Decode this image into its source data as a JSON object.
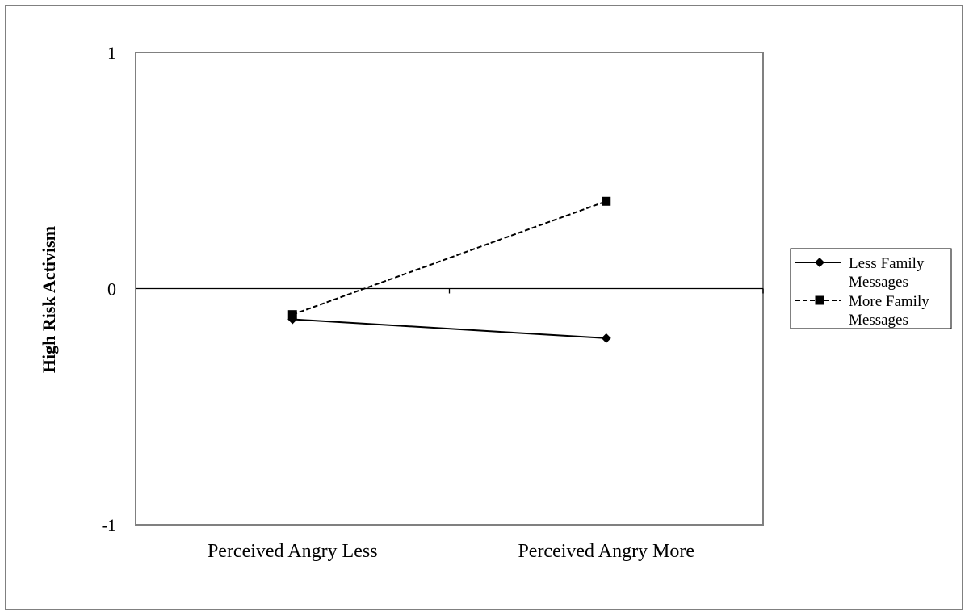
{
  "chart_data": {
    "type": "line",
    "title": "",
    "xlabel": "",
    "ylabel": "High Risk Activism",
    "categories": [
      "Perceived Angry Less",
      "Perceived Angry More"
    ],
    "ylim": [
      -1,
      1
    ],
    "yticks": [
      1,
      0,
      -1
    ],
    "ytick_labels": [
      "1",
      "0",
      "-1"
    ],
    "grid": false,
    "legend_position": "right",
    "series": [
      {
        "name": "Less Family Messages",
        "name_lines": [
          "Less Family",
          "Messages"
        ],
        "values": [
          -0.13,
          -0.21
        ],
        "marker": "diamond",
        "line_style": "solid",
        "color": "#000000"
      },
      {
        "name": "More Family Messages",
        "name_lines": [
          "More Family",
          "Messages"
        ],
        "values": [
          -0.11,
          0.37
        ],
        "marker": "square",
        "line_style": "dashed",
        "color": "#000000"
      }
    ]
  }
}
